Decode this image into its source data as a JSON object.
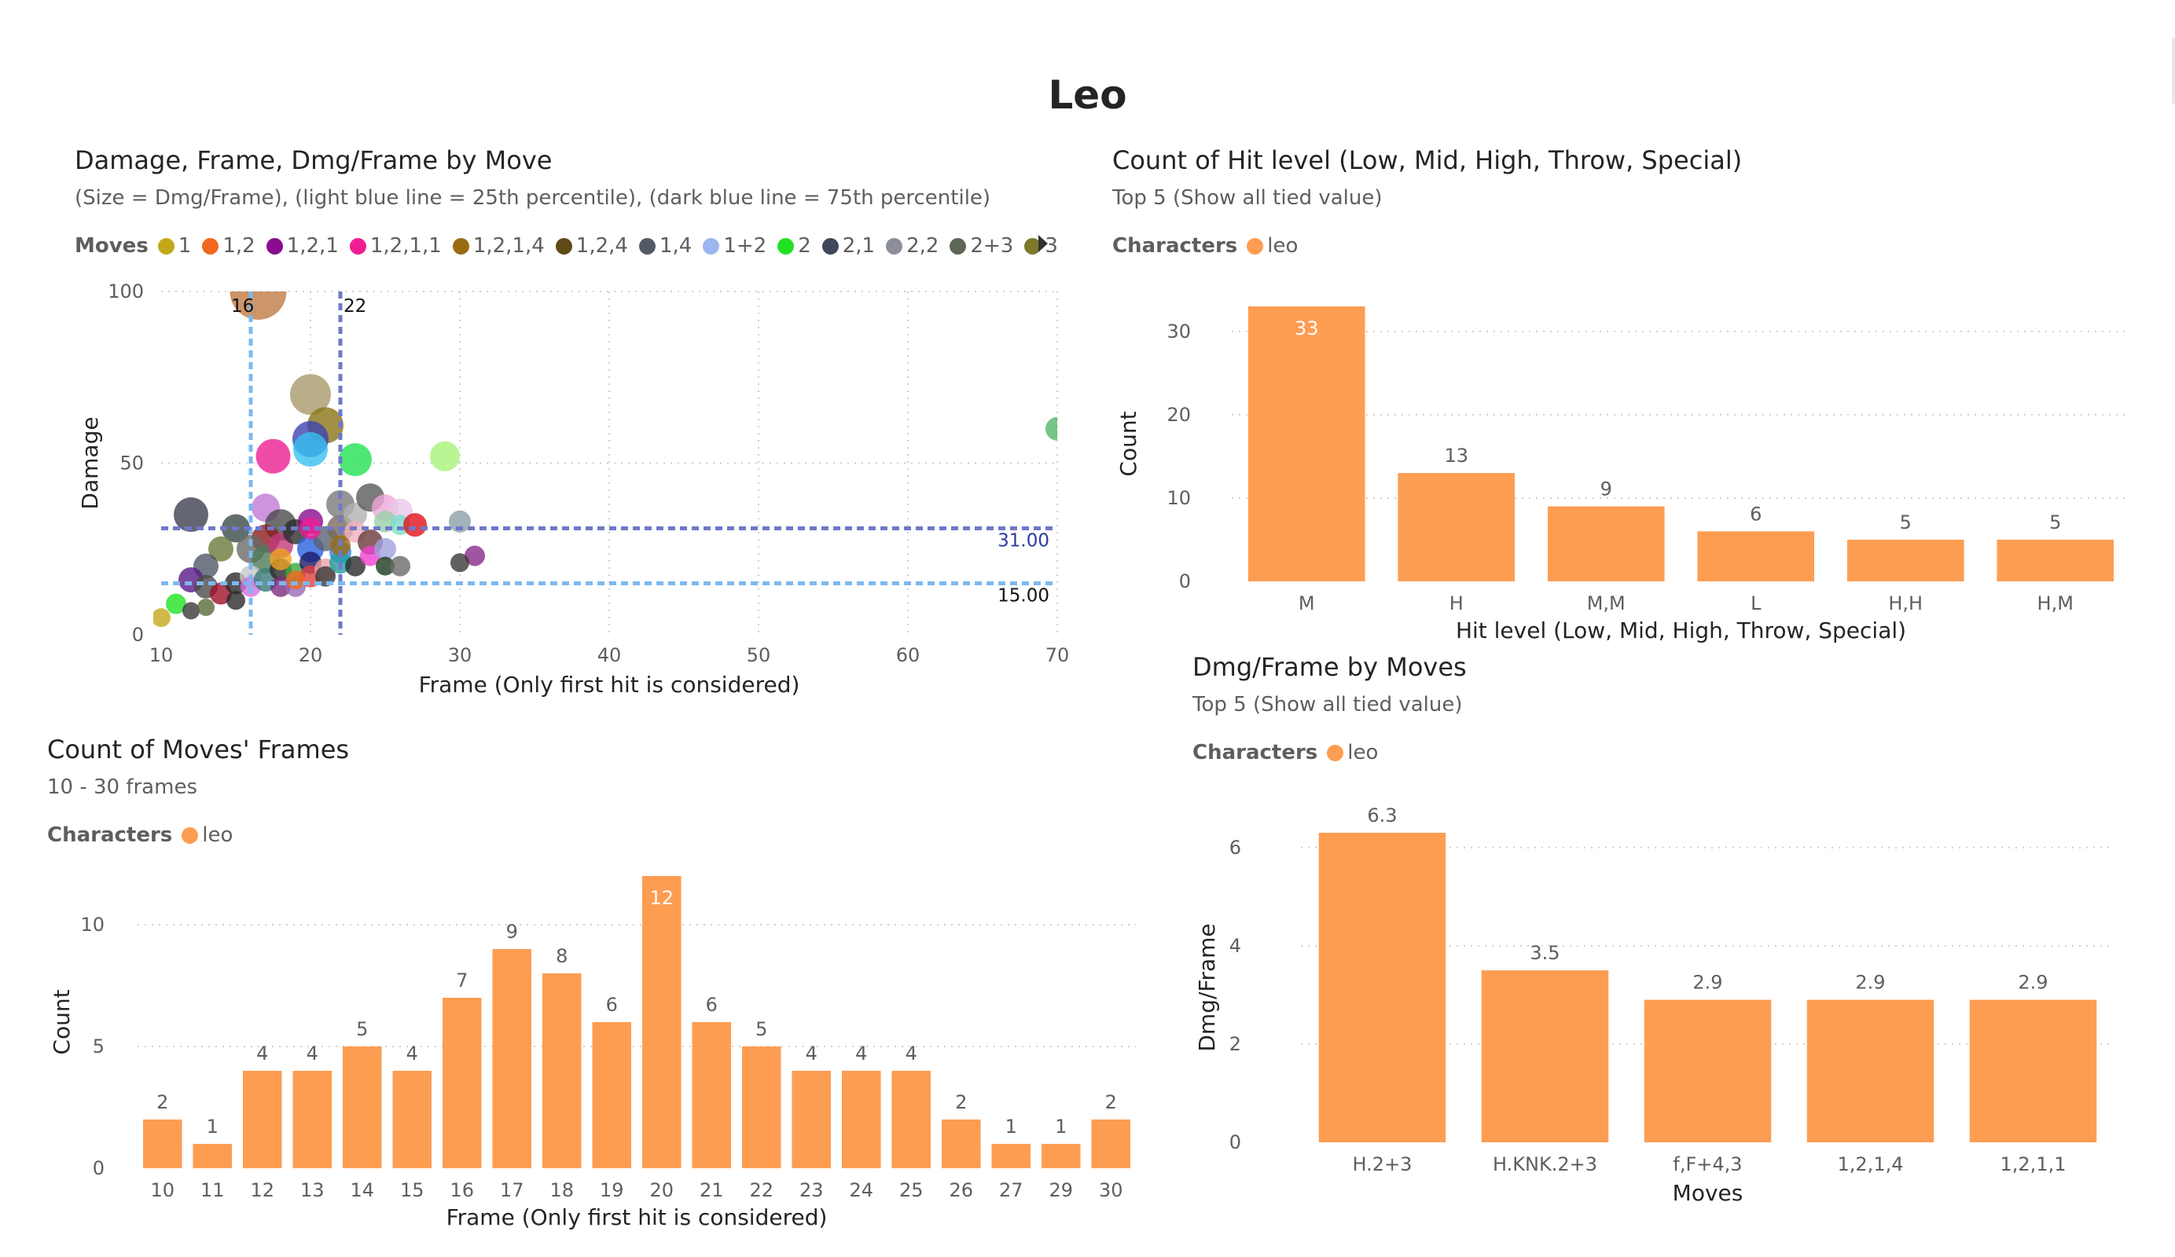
{
  "page": {
    "title": "Leo"
  },
  "colors": {
    "bar": "#fd9d52",
    "light_line": "#7cb9f0",
    "dark_line": "#6f78c9",
    "grid": "#d9d9d9"
  },
  "scatter": {
    "title": "Damage, Frame, Dmg/Frame by Move",
    "subtitle": "(Size = Dmg/Frame), (light blue line = 25th percentile), (dark blue line = 75th percentile)",
    "legend_title": "Moves",
    "legend_more_icon": "triangle-right-icon",
    "legend": [
      {
        "label": "1",
        "color": "#c3a81b"
      },
      {
        "label": "1,2",
        "color": "#f2681f"
      },
      {
        "label": "1,2,1",
        "color": "#8a0d8f"
      },
      {
        "label": "1,2,1,1",
        "color": "#ee1e92"
      },
      {
        "label": "1,2,1,4",
        "color": "#9b6b12"
      },
      {
        "label": "1,2,4",
        "color": "#5f4a17"
      },
      {
        "label": "1,4",
        "color": "#535a67"
      },
      {
        "label": "1+2",
        "color": "#9db5f0"
      },
      {
        "label": "2",
        "color": "#22e122"
      },
      {
        "label": "2,1",
        "color": "#40475a"
      },
      {
        "label": "2,2",
        "color": "#8c8e9a"
      },
      {
        "label": "2+3",
        "color": "#5e6655"
      },
      {
        "label": "3",
        "color": "#7d7a2a"
      }
    ]
  },
  "hitlevel": {
    "title": "Count of Hit level (Low, Mid, High, Throw, Special)",
    "subtitle": "Top 5 (Show all tied value)",
    "legend_title": "Characters",
    "legend_item": "leo"
  },
  "frames": {
    "title": "Count of Moves' Frames",
    "subtitle": "10 - 30 frames",
    "legend_title": "Characters",
    "legend_item": "leo"
  },
  "dmgframe": {
    "title": "Dmg/Frame by Moves",
    "subtitle": "Top 5 (Show all tied value)",
    "legend_title": "Characters",
    "legend_item": "leo"
  },
  "chart_data": [
    {
      "type": "scatter",
      "xlabel": "Frame (Only first hit is considered)",
      "ylabel": "Damage",
      "xlim": [
        10,
        70
      ],
      "ylim": [
        0,
        100
      ],
      "xticks": [
        10,
        20,
        30,
        40,
        50,
        60,
        70
      ],
      "yticks": [
        0,
        50,
        100
      ],
      "reference_lines": [
        {
          "axis": "x",
          "value": 16,
          "label": "16",
          "style": "light-blue dashed"
        },
        {
          "axis": "x",
          "value": 22,
          "label": "22",
          "style": "dark-blue dashed"
        },
        {
          "axis": "y",
          "value": 31,
          "label": "31.00",
          "style": "dark-blue dashed"
        },
        {
          "axis": "y",
          "value": 15,
          "label": "15.00",
          "style": "light-blue dashed"
        }
      ],
      "points": [
        {
          "x": 16.5,
          "y": 100,
          "r": 36,
          "color": "#c17a45"
        },
        {
          "x": 20,
          "y": 70,
          "r": 26,
          "color": "#a89a6a"
        },
        {
          "x": 21,
          "y": 61,
          "r": 23,
          "color": "#8a7415"
        },
        {
          "x": 20,
          "y": 57,
          "r": 23,
          "color": "#3e44b0"
        },
        {
          "x": 20,
          "y": 54,
          "r": 22,
          "color": "#38c1f0"
        },
        {
          "x": 17.5,
          "y": 52,
          "r": 22,
          "color": "#ee1e92"
        },
        {
          "x": 23,
          "y": 51,
          "r": 21,
          "color": "#22e152"
        },
        {
          "x": 29,
          "y": 52,
          "r": 19,
          "color": "#a9f279"
        },
        {
          "x": 70,
          "y": 60,
          "r": 15,
          "color": "#55b56a"
        },
        {
          "x": 12,
          "y": 35,
          "r": 22,
          "color": "#3e4050"
        },
        {
          "x": 15,
          "y": 31,
          "r": 18,
          "color": "#3b4a48"
        },
        {
          "x": 17,
          "y": 37,
          "r": 18,
          "color": "#c07ad8"
        },
        {
          "x": 18,
          "y": 32,
          "r": 20,
          "color": "#4a4a4a"
        },
        {
          "x": 17,
          "y": 28,
          "r": 18,
          "color": "#8b1c1c"
        },
        {
          "x": 16,
          "y": 25,
          "r": 18,
          "color": "#6a6a6a"
        },
        {
          "x": 17,
          "y": 22,
          "r": 18,
          "color": "#4f7a58"
        },
        {
          "x": 18,
          "y": 26,
          "r": 16,
          "color": "#c03a7a"
        },
        {
          "x": 19,
          "y": 30,
          "r": 16,
          "color": "#2d2d2d"
        },
        {
          "x": 20,
          "y": 33,
          "r": 16,
          "color": "#8a0d8f"
        },
        {
          "x": 20,
          "y": 25,
          "r": 17,
          "color": "#2b62e0"
        },
        {
          "x": 21,
          "y": 28,
          "r": 16,
          "color": "#5a6070"
        },
        {
          "x": 22,
          "y": 31,
          "r": 17,
          "color": "#7b6a5a"
        },
        {
          "x": 22,
          "y": 38,
          "r": 18,
          "color": "#7a7a7a"
        },
        {
          "x": 23,
          "y": 35,
          "r": 15,
          "color": "#b0b0b0"
        },
        {
          "x": 24,
          "y": 40,
          "r": 18,
          "color": "#5a5a5a"
        },
        {
          "x": 25,
          "y": 37,
          "r": 17,
          "color": "#f0a8d8"
        },
        {
          "x": 26,
          "y": 36,
          "r": 16,
          "color": "#e8c8e8"
        },
        {
          "x": 23,
          "y": 30,
          "r": 14,
          "color": "#f0b0c0"
        },
        {
          "x": 24,
          "y": 27,
          "r": 16,
          "color": "#6a3a3a"
        },
        {
          "x": 25,
          "y": 33,
          "r": 14,
          "color": "#9acfa8"
        },
        {
          "x": 26,
          "y": 32,
          "r": 13,
          "color": "#7ae0c8"
        },
        {
          "x": 27,
          "y": 32,
          "r": 15,
          "color": "#e0101a"
        },
        {
          "x": 30,
          "y": 33,
          "r": 14,
          "color": "#8aa0a8"
        },
        {
          "x": 31,
          "y": 23,
          "r": 13,
          "color": "#8a2a8a"
        },
        {
          "x": 30,
          "y": 21,
          "r": 12,
          "color": "#3a3a3a"
        },
        {
          "x": 14,
          "y": 25,
          "r": 16,
          "color": "#6a7a3a"
        },
        {
          "x": 13,
          "y": 20,
          "r": 16,
          "color": "#505868"
        },
        {
          "x": 12,
          "y": 16,
          "r": 16,
          "color": "#5a1a8a"
        },
        {
          "x": 13,
          "y": 14,
          "r": 15,
          "color": "#4a4a4a"
        },
        {
          "x": 14,
          "y": 12,
          "r": 14,
          "color": "#a0102a"
        },
        {
          "x": 15,
          "y": 15,
          "r": 14,
          "color": "#2a2a2a"
        },
        {
          "x": 16,
          "y": 17,
          "r": 14,
          "color": "#c8c8c8"
        },
        {
          "x": 16,
          "y": 14,
          "r": 13,
          "color": "#d070e0"
        },
        {
          "x": 17,
          "y": 16,
          "r": 15,
          "color": "#3a7a7a"
        },
        {
          "x": 18,
          "y": 19,
          "r": 14,
          "color": "#2a2a2a"
        },
        {
          "x": 18,
          "y": 14,
          "r": 13,
          "color": "#7a2a7a"
        },
        {
          "x": 19,
          "y": 14,
          "r": 13,
          "color": "#9a6ab8"
        },
        {
          "x": 19,
          "y": 18,
          "r": 13,
          "color": "#3aa83a"
        },
        {
          "x": 20,
          "y": 21,
          "r": 14,
          "color": "#1a1a6a"
        },
        {
          "x": 20,
          "y": 17,
          "r": 14,
          "color": "#e04040"
        },
        {
          "x": 21,
          "y": 19,
          "r": 14,
          "color": "#f0a0a0"
        },
        {
          "x": 21,
          "y": 17,
          "r": 13,
          "color": "#3a3a3a"
        },
        {
          "x": 22,
          "y": 24,
          "r": 14,
          "color": "#3a80e0"
        },
        {
          "x": 22,
          "y": 21,
          "r": 14,
          "color": "#20a0a0"
        },
        {
          "x": 23,
          "y": 20,
          "r": 13,
          "color": "#2a2a2a"
        },
        {
          "x": 24,
          "y": 23,
          "r": 13,
          "color": "#f040d0"
        },
        {
          "x": 25,
          "y": 25,
          "r": 14,
          "color": "#a0a0e0"
        },
        {
          "x": 25,
          "y": 20,
          "r": 12,
          "color": "#1a3a1a"
        },
        {
          "x": 26,
          "y": 20,
          "r": 13,
          "color": "#6a6a6a"
        },
        {
          "x": 18,
          "y": 22,
          "r": 14,
          "color": "#f0a020"
        },
        {
          "x": 11,
          "y": 9,
          "r": 13,
          "color": "#22e122"
        },
        {
          "x": 12,
          "y": 7,
          "r": 11,
          "color": "#3a3a3a"
        },
        {
          "x": 13,
          "y": 8,
          "r": 11,
          "color": "#5a6a3a"
        },
        {
          "x": 15,
          "y": 10,
          "r": 12,
          "color": "#2a2a2a"
        },
        {
          "x": 10,
          "y": 5,
          "r": 12,
          "color": "#c3a81b"
        },
        {
          "x": 19,
          "y": 16,
          "r": 12,
          "color": "#f2681f"
        },
        {
          "x": 20,
          "y": 31,
          "r": 14,
          "color": "#ee1e92"
        },
        {
          "x": 22,
          "y": 26,
          "r": 13,
          "color": "#9b6b12"
        }
      ]
    },
    {
      "type": "bar",
      "categories": [
        "M",
        "H",
        "M,M",
        "L",
        "H,H",
        "H,M"
      ],
      "values": [
        33,
        13,
        9,
        6,
        5,
        5
      ],
      "xlabel": "Hit level (Low, Mid, High, Throw, Special)",
      "ylabel": "Count",
      "ylim": [
        0,
        33
      ],
      "yticks": [
        0,
        10,
        20,
        30
      ]
    },
    {
      "type": "bar",
      "categories": [
        "10",
        "11",
        "12",
        "13",
        "14",
        "15",
        "16",
        "17",
        "18",
        "19",
        "20",
        "21",
        "22",
        "23",
        "24",
        "25",
        "26",
        "27",
        "29",
        "30"
      ],
      "values": [
        2,
        1,
        4,
        4,
        5,
        4,
        7,
        9,
        8,
        6,
        12,
        6,
        5,
        4,
        4,
        4,
        2,
        1,
        1,
        2
      ],
      "xlabel": "Frame (Only first hit is considered)",
      "ylabel": "Count",
      "ylim": [
        0,
        12
      ],
      "yticks": [
        0,
        5,
        10
      ]
    },
    {
      "type": "bar",
      "categories": [
        "H.2+3",
        "H.KNK.2+3",
        "f,F+4,3",
        "1,2,1,4",
        "1,2,1,1"
      ],
      "values": [
        6.3,
        3.5,
        2.9,
        2.9,
        2.9
      ],
      "xlabel": "Moves",
      "ylabel": "Dmg/Frame",
      "ylim": [
        0,
        6.3
      ],
      "yticks": [
        0,
        2,
        4,
        6
      ]
    }
  ]
}
